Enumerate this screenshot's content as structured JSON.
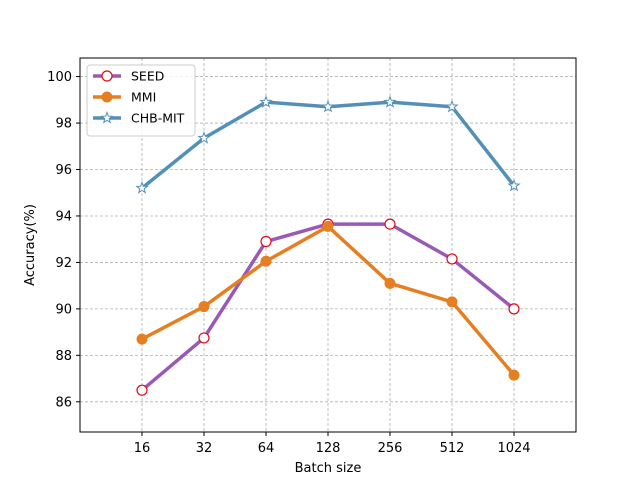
{
  "chart_data": {
    "type": "line",
    "title": "",
    "xlabel": "Batch size",
    "ylabel": "Accuracy(%)",
    "categories": [
      "16",
      "32",
      "64",
      "128",
      "256",
      "512",
      "1024"
    ],
    "ylim": [
      84.7,
      100.8
    ],
    "yticks": [
      86,
      88,
      90,
      92,
      94,
      96,
      98,
      100
    ],
    "grid": true,
    "legend_position": "top-left",
    "series": [
      {
        "name": "SEED",
        "color": "#9b59b6",
        "marker": "circle-open",
        "values": [
          86.5,
          88.75,
          92.9,
          93.65,
          93.65,
          92.15,
          90.0
        ]
      },
      {
        "name": "MMI",
        "color": "#e67e22",
        "marker": "circle-filled",
        "values": [
          88.7,
          90.1,
          92.05,
          93.55,
          91.1,
          90.3,
          87.15
        ]
      },
      {
        "name": "CHB-MIT",
        "color": "#5390b7",
        "marker": "star-open",
        "values": [
          95.2,
          97.35,
          98.9,
          98.7,
          98.9,
          98.7,
          95.3
        ]
      }
    ]
  }
}
